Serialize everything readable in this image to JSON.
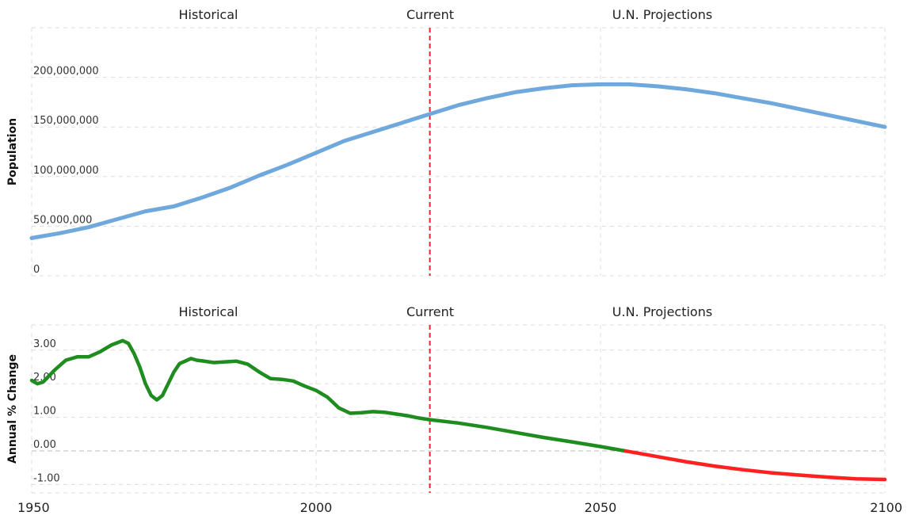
{
  "chart_data": [
    {
      "type": "line",
      "section_labels": [
        "Historical",
        "Current",
        "U.N. Projections"
      ],
      "ylabel": "Population",
      "y_ticks": [
        {
          "value": 0,
          "label": "0"
        },
        {
          "value": 50000000,
          "label": "50,000,000"
        },
        {
          "value": 100000000,
          "label": "100,000,000"
        },
        {
          "value": 150000000,
          "label": "150,000,000"
        },
        {
          "value": 200000000,
          "label": "200,000,000"
        }
      ],
      "xlim": [
        1950,
        2100
      ],
      "ylim": [
        0,
        250000000
      ],
      "current_year": 2020,
      "grid": true,
      "series": [
        {
          "color": "#6fa8dc",
          "x": [
            1950,
            1955,
            1960,
            1965,
            1970,
            1975,
            1980,
            1985,
            1990,
            1995,
            2000,
            2005,
            2010,
            2015,
            2020,
            2025,
            2030,
            2035,
            2040,
            2045,
            2050,
            2055,
            2060,
            2065,
            2070,
            2075,
            2080,
            2085,
            2090,
            2095,
            2100
          ],
          "values": [
            38000000,
            43000000,
            49000000,
            57000000,
            65000000,
            70000000,
            79000000,
            89000000,
            101000000,
            112000000,
            124000000,
            136000000,
            145000000,
            154000000,
            163000000,
            172000000,
            179000000,
            185000000,
            189000000,
            192000000,
            193000000,
            193000000,
            191000000,
            188000000,
            184000000,
            179000000,
            174000000,
            168000000,
            162000000,
            156000000,
            150000000
          ]
        }
      ]
    },
    {
      "type": "line",
      "section_labels": [
        "Historical",
        "Current",
        "U.N. Projections"
      ],
      "ylabel": "Annual % Change",
      "y_ticks": [
        {
          "value": -1,
          "label": "-1.00"
        },
        {
          "value": 0,
          "label": "0.00"
        },
        {
          "value": 1,
          "label": "1.00"
        },
        {
          "value": 2,
          "label": "2.00"
        },
        {
          "value": 3,
          "label": "3.00"
        }
      ],
      "x_ticks": [
        {
          "value": 1950,
          "label": "1950"
        },
        {
          "value": 2000,
          "label": "2000"
        },
        {
          "value": 2050,
          "label": "2050"
        },
        {
          "value": 2100,
          "label": "2100"
        }
      ],
      "xlim": [
        1950,
        2100
      ],
      "ylim": [
        -1.25,
        3.75
      ],
      "current_year": 2020,
      "grid": true,
      "positive_color": "#1e8c1e",
      "negative_color": "#ff2020",
      "series": [
        {
          "x": [
            1950,
            1951,
            1952,
            1954,
            1956,
            1958,
            1960,
            1962,
            1964,
            1966,
            1967,
            1968,
            1969,
            1970,
            1971,
            1972,
            1973,
            1974,
            1975,
            1976,
            1978,
            1979,
            1980,
            1982,
            1984,
            1986,
            1988,
            1990,
            1992,
            1994,
            1996,
            1998,
            2000,
            2002,
            2004,
            2006,
            2008,
            2010,
            2012,
            2014,
            2016,
            2018,
            2020,
            2025,
            2030,
            2035,
            2040,
            2045,
            2050,
            2055,
            2060,
            2065,
            2070,
            2075,
            2080,
            2085,
            2090,
            2095,
            2100
          ],
          "values": [
            2.1,
            2.0,
            2.05,
            2.4,
            2.7,
            2.8,
            2.8,
            2.95,
            3.15,
            3.28,
            3.2,
            2.9,
            2.5,
            2.0,
            1.65,
            1.52,
            1.65,
            2.0,
            2.35,
            2.6,
            2.75,
            2.7,
            2.68,
            2.63,
            2.65,
            2.67,
            2.58,
            2.35,
            2.15,
            2.13,
            2.08,
            1.93,
            1.8,
            1.6,
            1.28,
            1.12,
            1.14,
            1.17,
            1.15,
            1.1,
            1.05,
            0.98,
            0.93,
            0.83,
            0.7,
            0.55,
            0.4,
            0.27,
            0.13,
            -0.02,
            -0.17,
            -0.32,
            -0.45,
            -0.56,
            -0.65,
            -0.72,
            -0.78,
            -0.83,
            -0.85
          ]
        }
      ]
    }
  ]
}
